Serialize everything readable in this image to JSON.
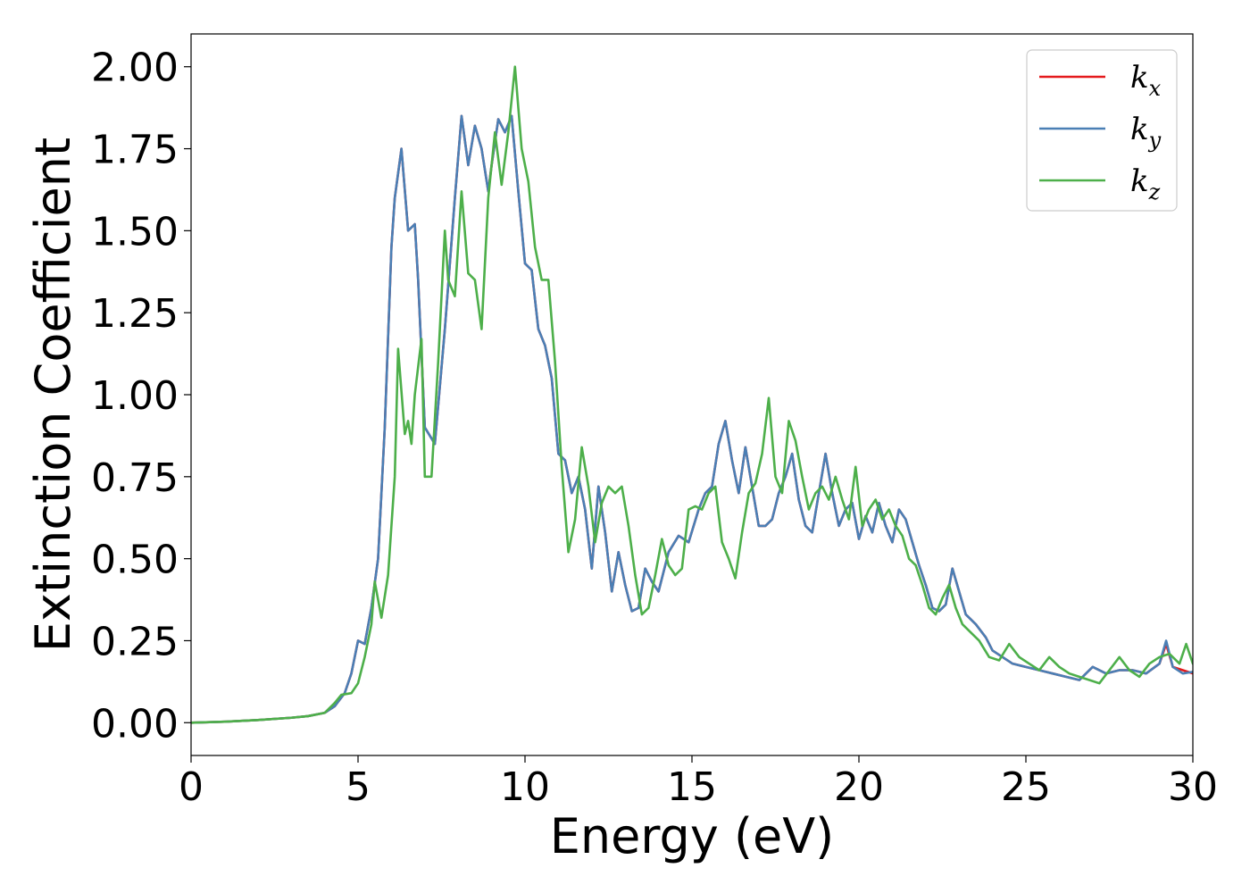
{
  "chart_data": {
    "type": "line",
    "xlabel": "Energy (eV)",
    "ylabel": "Extinction Coefficient",
    "xlim": [
      0,
      30
    ],
    "ylim": [
      -0.1,
      2.1
    ],
    "xticks": [
      0,
      5,
      10,
      15,
      20,
      25,
      30
    ],
    "xtick_labels": [
      "0",
      "5",
      "10",
      "15",
      "20",
      "25",
      "30"
    ],
    "yticks": [
      0,
      0.25,
      0.5,
      0.75,
      1.0,
      1.25,
      1.5,
      1.75,
      2.0
    ],
    "ytick_labels": [
      "0.00",
      "0.25",
      "0.50",
      "0.75",
      "1.00",
      "1.25",
      "1.50",
      "1.75",
      "2.00"
    ],
    "grid": false,
    "legend_position": "top-right",
    "series": [
      {
        "name": "k_x",
        "legend_base": "k",
        "legend_sub": "x",
        "color": "#e41a1c",
        "x": [
          0,
          1,
          2,
          3,
          3.5,
          4,
          4.3,
          4.6,
          4.8,
          5.0,
          5.2,
          5.4,
          5.6,
          5.8,
          6.0,
          6.1,
          6.3,
          6.5,
          6.7,
          6.8,
          7.0,
          7.3,
          7.6,
          7.9,
          8.1,
          8.3,
          8.5,
          8.7,
          8.9,
          9.0,
          9.2,
          9.4,
          9.6,
          9.8,
          10.0,
          10.2,
          10.4,
          10.6,
          10.8,
          11.0,
          11.2,
          11.4,
          11.6,
          11.8,
          12.0,
          12.2,
          12.4,
          12.6,
          12.8,
          13.0,
          13.2,
          13.4,
          13.6,
          13.8,
          14.0,
          14.3,
          14.6,
          14.9,
          15.2,
          15.4,
          15.6,
          15.8,
          16.0,
          16.2,
          16.4,
          16.6,
          16.8,
          17.0,
          17.2,
          17.4,
          17.6,
          17.8,
          18.0,
          18.2,
          18.4,
          18.6,
          18.8,
          19.0,
          19.2,
          19.4,
          19.6,
          19.8,
          20.0,
          20.2,
          20.4,
          20.6,
          20.8,
          21.0,
          21.2,
          21.4,
          21.6,
          21.8,
          22.0,
          22.2,
          22.4,
          22.6,
          22.8,
          23.0,
          23.2,
          23.5,
          23.8,
          24.0,
          24.3,
          24.6,
          25.0,
          25.4,
          25.8,
          26.2,
          26.6,
          27.0,
          27.4,
          27.8,
          28.2,
          28.6,
          29.0,
          29.2,
          29.4,
          29.7,
          30.0
        ],
        "y": [
          0.0,
          0.003,
          0.008,
          0.015,
          0.02,
          0.03,
          0.05,
          0.09,
          0.15,
          0.25,
          0.24,
          0.35,
          0.5,
          0.9,
          1.45,
          1.6,
          1.75,
          1.5,
          1.52,
          1.35,
          0.9,
          0.85,
          1.2,
          1.6,
          1.85,
          1.7,
          1.82,
          1.75,
          1.62,
          1.7,
          1.84,
          1.8,
          1.85,
          1.62,
          1.4,
          1.38,
          1.2,
          1.15,
          1.05,
          0.82,
          0.8,
          0.7,
          0.75,
          0.65,
          0.47,
          0.72,
          0.58,
          0.4,
          0.52,
          0.42,
          0.34,
          0.35,
          0.47,
          0.43,
          0.4,
          0.52,
          0.57,
          0.55,
          0.65,
          0.7,
          0.72,
          0.85,
          0.92,
          0.8,
          0.7,
          0.84,
          0.72,
          0.6,
          0.6,
          0.62,
          0.7,
          0.75,
          0.82,
          0.68,
          0.6,
          0.58,
          0.7,
          0.82,
          0.7,
          0.6,
          0.65,
          0.67,
          0.56,
          0.63,
          0.58,
          0.67,
          0.6,
          0.55,
          0.65,
          0.62,
          0.55,
          0.48,
          0.42,
          0.35,
          0.34,
          0.36,
          0.47,
          0.4,
          0.33,
          0.3,
          0.26,
          0.22,
          0.2,
          0.18,
          0.17,
          0.16,
          0.15,
          0.14,
          0.13,
          0.17,
          0.15,
          0.16,
          0.16,
          0.15,
          0.18,
          0.24,
          0.17,
          0.16,
          0.15
        ]
      },
      {
        "name": "k_y",
        "legend_base": "k",
        "legend_sub": "y",
        "color": "#4a7fb5",
        "x": [
          0,
          1,
          2,
          3,
          3.5,
          4,
          4.3,
          4.6,
          4.8,
          5.0,
          5.2,
          5.4,
          5.6,
          5.8,
          6.0,
          6.1,
          6.3,
          6.5,
          6.7,
          6.8,
          7.0,
          7.3,
          7.6,
          7.9,
          8.1,
          8.3,
          8.5,
          8.7,
          8.9,
          9.0,
          9.2,
          9.4,
          9.6,
          9.8,
          10.0,
          10.2,
          10.4,
          10.6,
          10.8,
          11.0,
          11.2,
          11.4,
          11.6,
          11.8,
          12.0,
          12.2,
          12.4,
          12.6,
          12.8,
          13.0,
          13.2,
          13.4,
          13.6,
          13.8,
          14.0,
          14.3,
          14.6,
          14.9,
          15.2,
          15.4,
          15.6,
          15.8,
          16.0,
          16.2,
          16.4,
          16.6,
          16.8,
          17.0,
          17.2,
          17.4,
          17.6,
          17.8,
          18.0,
          18.2,
          18.4,
          18.6,
          18.8,
          19.0,
          19.2,
          19.4,
          19.6,
          19.8,
          20.0,
          20.2,
          20.4,
          20.6,
          20.8,
          21.0,
          21.2,
          21.4,
          21.6,
          21.8,
          22.0,
          22.2,
          22.4,
          22.6,
          22.8,
          23.0,
          23.2,
          23.5,
          23.8,
          24.0,
          24.3,
          24.6,
          25.0,
          25.4,
          25.8,
          26.2,
          26.6,
          27.0,
          27.4,
          27.8,
          28.2,
          28.6,
          29.0,
          29.2,
          29.4,
          29.7,
          30.0
        ],
        "y": [
          0.0,
          0.003,
          0.008,
          0.015,
          0.02,
          0.03,
          0.05,
          0.09,
          0.15,
          0.25,
          0.24,
          0.35,
          0.5,
          0.9,
          1.45,
          1.6,
          1.75,
          1.5,
          1.52,
          1.35,
          0.9,
          0.85,
          1.2,
          1.6,
          1.85,
          1.7,
          1.82,
          1.75,
          1.62,
          1.7,
          1.84,
          1.8,
          1.85,
          1.62,
          1.4,
          1.38,
          1.2,
          1.15,
          1.05,
          0.82,
          0.8,
          0.7,
          0.75,
          0.65,
          0.47,
          0.72,
          0.58,
          0.4,
          0.52,
          0.42,
          0.34,
          0.35,
          0.47,
          0.43,
          0.4,
          0.52,
          0.57,
          0.55,
          0.65,
          0.7,
          0.72,
          0.85,
          0.92,
          0.8,
          0.7,
          0.84,
          0.72,
          0.6,
          0.6,
          0.62,
          0.7,
          0.75,
          0.82,
          0.68,
          0.6,
          0.58,
          0.7,
          0.82,
          0.7,
          0.6,
          0.65,
          0.67,
          0.56,
          0.63,
          0.58,
          0.67,
          0.6,
          0.55,
          0.65,
          0.62,
          0.55,
          0.48,
          0.42,
          0.35,
          0.34,
          0.36,
          0.47,
          0.4,
          0.33,
          0.3,
          0.26,
          0.22,
          0.2,
          0.18,
          0.17,
          0.16,
          0.15,
          0.14,
          0.13,
          0.17,
          0.15,
          0.16,
          0.16,
          0.15,
          0.18,
          0.25,
          0.17,
          0.15,
          0.155
        ]
      },
      {
        "name": "k_z",
        "legend_base": "k",
        "legend_sub": "z",
        "color": "#4daf4a",
        "x": [
          0,
          1,
          2,
          3,
          3.5,
          4,
          4.3,
          4.5,
          4.8,
          5.0,
          5.2,
          5.4,
          5.5,
          5.7,
          5.9,
          6.1,
          6.2,
          6.4,
          6.5,
          6.6,
          6.7,
          6.9,
          7.0,
          7.2,
          7.4,
          7.6,
          7.7,
          7.9,
          8.1,
          8.3,
          8.5,
          8.7,
          8.9,
          9.1,
          9.3,
          9.5,
          9.7,
          9.9,
          10.1,
          10.3,
          10.5,
          10.7,
          10.9,
          11.1,
          11.3,
          11.5,
          11.7,
          11.9,
          12.1,
          12.3,
          12.5,
          12.7,
          12.9,
          13.1,
          13.3,
          13.5,
          13.7,
          13.9,
          14.1,
          14.3,
          14.5,
          14.7,
          14.9,
          15.1,
          15.3,
          15.5,
          15.7,
          15.9,
          16.1,
          16.3,
          16.5,
          16.7,
          16.9,
          17.1,
          17.3,
          17.5,
          17.7,
          17.9,
          18.1,
          18.3,
          18.5,
          18.7,
          18.9,
          19.1,
          19.3,
          19.5,
          19.7,
          19.9,
          20.1,
          20.3,
          20.5,
          20.7,
          20.9,
          21.1,
          21.3,
          21.5,
          21.7,
          21.9,
          22.1,
          22.3,
          22.5,
          22.7,
          22.9,
          23.1,
          23.3,
          23.6,
          23.9,
          24.2,
          24.5,
          24.8,
          25.1,
          25.4,
          25.7,
          26.0,
          26.3,
          26.6,
          26.9,
          27.2,
          27.5,
          27.8,
          28.1,
          28.4,
          28.7,
          29.0,
          29.3,
          29.6,
          29.8,
          30.0
        ],
        "y": [
          0.0,
          0.003,
          0.008,
          0.015,
          0.02,
          0.03,
          0.06,
          0.085,
          0.09,
          0.12,
          0.2,
          0.3,
          0.43,
          0.32,
          0.45,
          0.75,
          1.14,
          0.88,
          0.92,
          0.85,
          1.0,
          1.17,
          0.75,
          0.75,
          1.1,
          1.5,
          1.35,
          1.3,
          1.62,
          1.37,
          1.35,
          1.2,
          1.6,
          1.8,
          1.64,
          1.8,
          2.0,
          1.75,
          1.65,
          1.45,
          1.35,
          1.35,
          1.1,
          0.78,
          0.52,
          0.62,
          0.84,
          0.72,
          0.55,
          0.67,
          0.72,
          0.7,
          0.72,
          0.6,
          0.45,
          0.33,
          0.35,
          0.45,
          0.56,
          0.48,
          0.45,
          0.47,
          0.65,
          0.66,
          0.65,
          0.7,
          0.72,
          0.55,
          0.5,
          0.44,
          0.58,
          0.7,
          0.73,
          0.82,
          0.99,
          0.75,
          0.7,
          0.92,
          0.86,
          0.75,
          0.65,
          0.7,
          0.72,
          0.68,
          0.75,
          0.68,
          0.62,
          0.78,
          0.6,
          0.65,
          0.68,
          0.62,
          0.65,
          0.6,
          0.57,
          0.5,
          0.48,
          0.42,
          0.35,
          0.33,
          0.38,
          0.42,
          0.35,
          0.3,
          0.28,
          0.25,
          0.2,
          0.19,
          0.24,
          0.2,
          0.18,
          0.16,
          0.2,
          0.17,
          0.15,
          0.14,
          0.13,
          0.12,
          0.16,
          0.2,
          0.16,
          0.14,
          0.18,
          0.2,
          0.21,
          0.18,
          0.24,
          0.18
        ]
      }
    ]
  }
}
